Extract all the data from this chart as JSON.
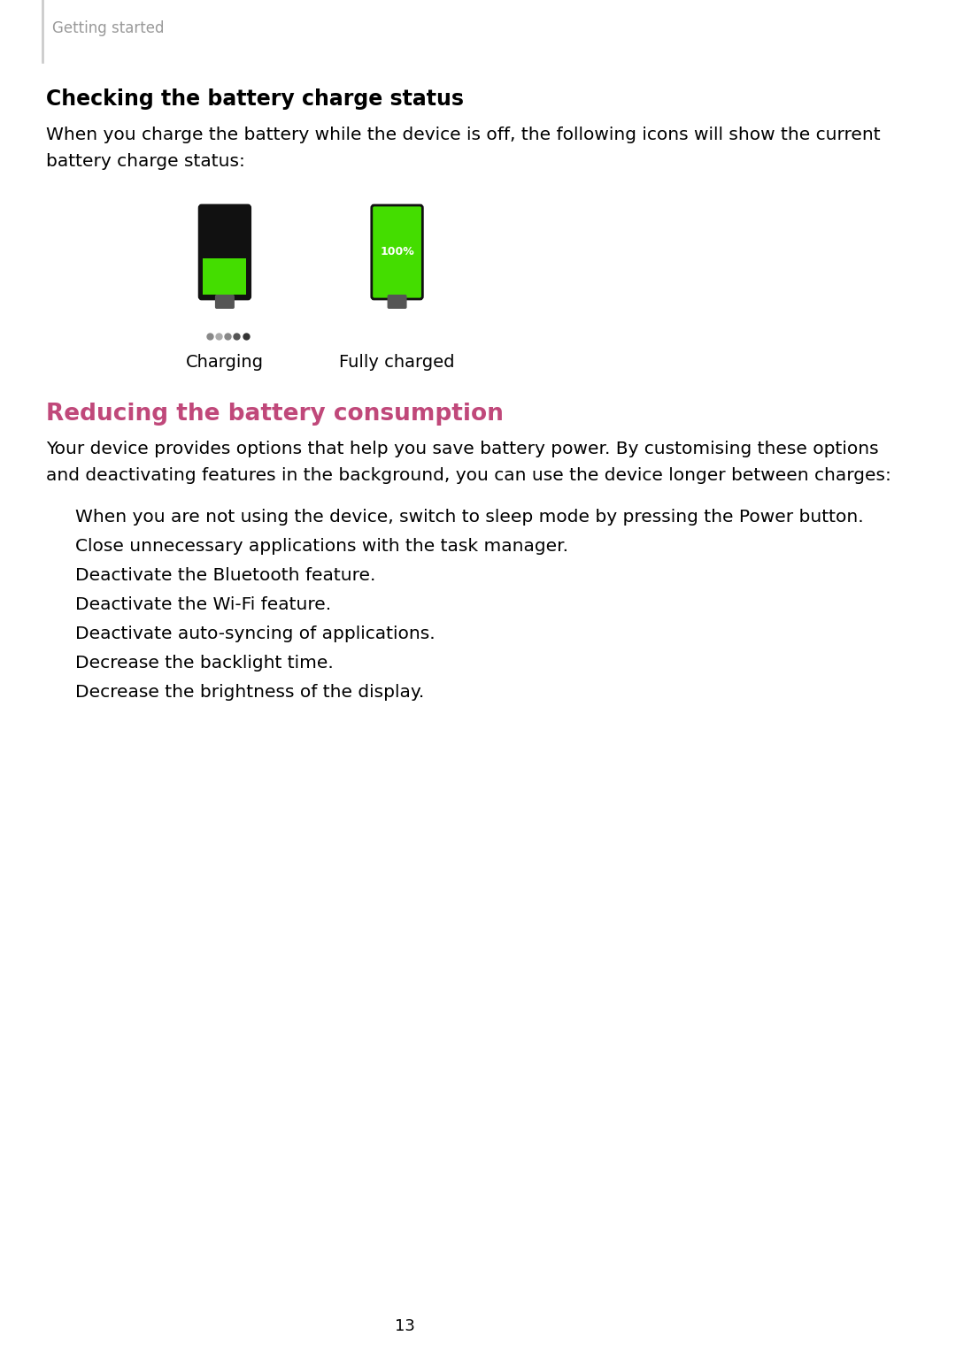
{
  "background_color": "#ffffff",
  "page_number": "13",
  "header_text": "Getting started",
  "header_color": "#999999",
  "header_line_color": "#cccccc",
  "section1_title": "Checking the battery charge status",
  "section1_title_color": "#000000",
  "section1_body": "When you charge the battery while the device is off, the following icons will show the current battery charge status:",
  "charging_label": "Charging",
  "fully_charged_label": "Fully charged",
  "battery_green": "#44dd00",
  "battery_dark": "#222222",
  "battery_terminal": "#555555",
  "battery_border": "#111111",
  "section2_title": "Reducing the battery consumption",
  "section2_title_color": "#c0487a",
  "section2_body": "Your device provides options that help you save battery power. By customising these options and deactivating features in the background, you can use the device longer between charges:",
  "bullet_items": [
    "When you are not using the device, switch to sleep mode by pressing the Power button.",
    "Close unnecessary applications with the task manager.",
    "Deactivate the Bluetooth feature.",
    "Deactivate the Wi-Fi feature.",
    "Deactivate auto-syncing of applications.",
    "Decrease the backlight time.",
    "Decrease the brightness of the display."
  ],
  "body_font_size": 14.5,
  "bullet_font_size": 14.5,
  "title1_font_size": 17,
  "title2_font_size": 19,
  "header_font_size": 12,
  "label_font_size": 14
}
